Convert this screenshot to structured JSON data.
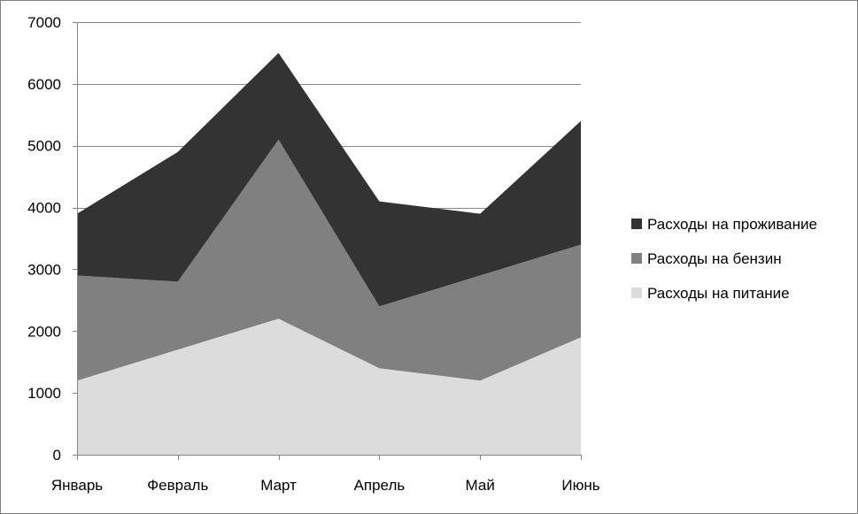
{
  "chart_data": {
    "type": "area",
    "stacked": true,
    "categories": [
      "Январь",
      "Февраль",
      "Март",
      "Апрель",
      "Май",
      "Июнь"
    ],
    "series": [
      {
        "name": "Расходы на питание",
        "values": [
          1200,
          1700,
          2200,
          1400,
          1200,
          1900
        ],
        "color": "#dcdcdc"
      },
      {
        "name": "Расходы на бензин",
        "values": [
          1700,
          1100,
          2900,
          1000,
          1700,
          1500
        ],
        "color": "#808080"
      },
      {
        "name": "Расходы на проживание",
        "values": [
          1000,
          2100,
          1400,
          1700,
          1000,
          2000
        ],
        "color": "#333333"
      }
    ],
    "ylim": [
      0,
      7000
    ],
    "yticks": [
      "0",
      "1000",
      "2000",
      "3000",
      "4000",
      "5000",
      "6000",
      "7000"
    ],
    "grid": true,
    "legend_position": "right",
    "legend_order": [
      "Расходы на проживание",
      "Расходы на бензин",
      "Расходы на питание"
    ],
    "title": "",
    "xlabel": "",
    "ylabel": ""
  }
}
